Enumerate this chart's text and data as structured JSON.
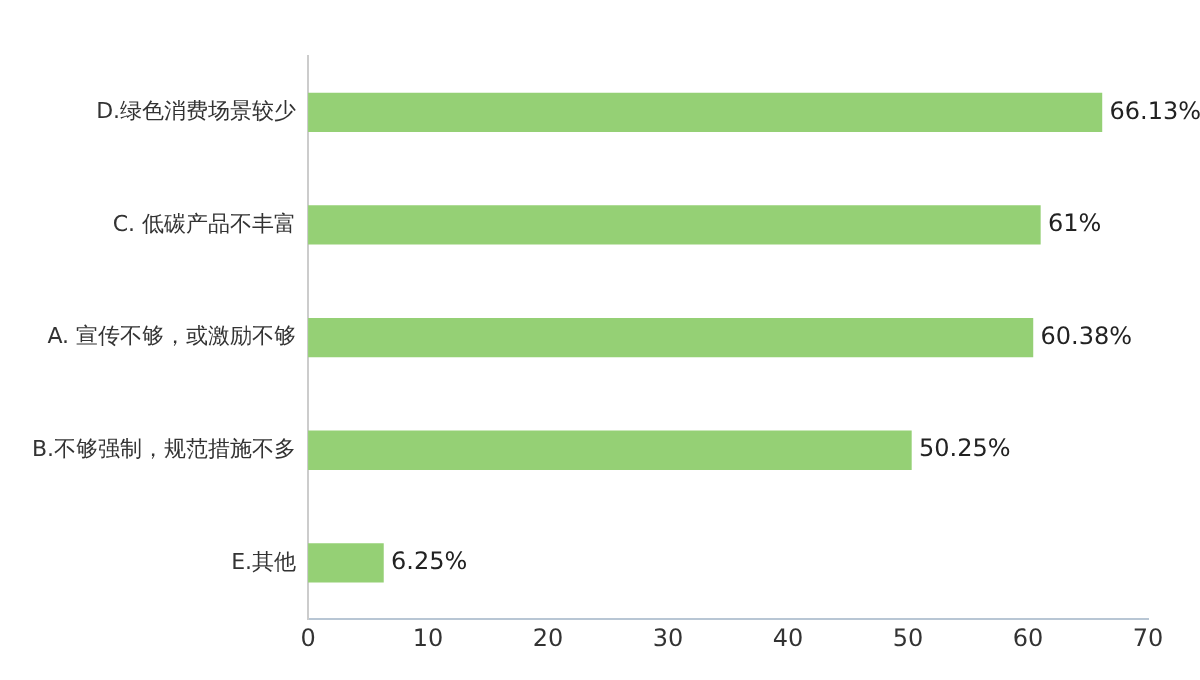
{
  "chart_data": {
    "type": "bar",
    "orientation": "horizontal",
    "categories": [
      "D.绿色消费场景较少",
      "C. 低碳产品不丰富",
      "A. 宣传不够，或激励不够",
      "B.不够强制，规范措施不多",
      "E.其他"
    ],
    "values": [
      66.13,
      61,
      60.38,
      50.25,
      6.25
    ],
    "value_labels": [
      "66.13%",
      "61%",
      "60.38%",
      "50.25%",
      "6.25%"
    ],
    "color": "#95d075",
    "xlim": [
      0,
      70
    ],
    "xticks": [
      0,
      10,
      20,
      30,
      40,
      50,
      60,
      70
    ],
    "grid": false,
    "legend": false
  }
}
